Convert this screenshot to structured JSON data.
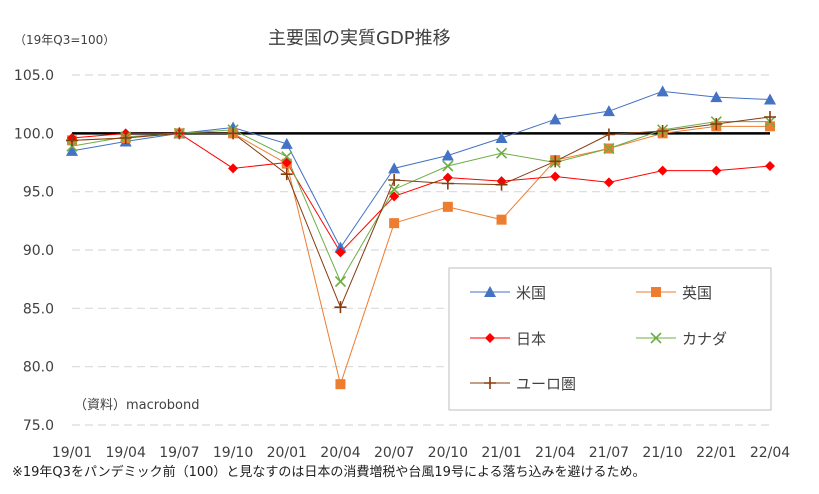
{
  "colors": {
    "米国": "#4472c4",
    "英国": "#ed7d31",
    "日本": "#ff0000",
    "カナダ": "#70ad47",
    "ユーロ圏": "#843c0c",
    "baseline": "#000000",
    "grid": "#d9d9d9"
  },
  "chart_data": {
    "type": "line",
    "title": "主要国の実質GDP推移",
    "unit_label": "（19年Q3=100）",
    "source_label": "（資料）macrobond",
    "footnote": "※19年Q3をパンデミック前（100）と見なすのは日本の消費増税や台風19号による落ち込みを避けるため。",
    "ylim": [
      75,
      105
    ],
    "yticks": [
      "75.0",
      "80.0",
      "85.0",
      "90.0",
      "95.0",
      "100.0",
      "105.0"
    ],
    "categories": [
      "19/01",
      "19/04",
      "19/07",
      "19/10",
      "20/01",
      "20/04",
      "20/07",
      "20/10",
      "21/01",
      "21/04",
      "21/07",
      "21/10",
      "22/01",
      "22/04"
    ],
    "baseline": 100,
    "grid": true,
    "legend_position": "inside-bottom-right",
    "series": [
      {
        "name": "米国",
        "marker": "triangle",
        "color_key": "米国",
        "values": [
          98.5,
          99.3,
          100.0,
          100.5,
          99.1,
          90.2,
          97.0,
          98.1,
          99.6,
          101.2,
          101.9,
          103.6,
          103.1,
          102.9
        ]
      },
      {
        "name": "英国",
        "marker": "square",
        "color_key": "英国",
        "values": [
          99.4,
          99.6,
          100.0,
          100.0,
          97.4,
          78.5,
          92.3,
          93.7,
          92.6,
          97.7,
          98.7,
          100.0,
          100.6,
          100.6
        ]
      },
      {
        "name": "日本",
        "marker": "diamond",
        "color_key": "日本",
        "values": [
          99.6,
          100.0,
          100.0,
          97.0,
          97.5,
          89.8,
          94.6,
          96.2,
          95.9,
          96.3,
          95.8,
          96.8,
          96.8,
          97.2
        ]
      },
      {
        "name": "カナダ",
        "marker": "x",
        "color_key": "カナダ",
        "values": [
          98.9,
          99.7,
          100.0,
          100.3,
          98.0,
          87.3,
          95.2,
          97.2,
          98.3,
          97.5,
          98.7,
          100.3,
          101.0,
          101.0
        ]
      },
      {
        "name": "ユーロ圏",
        "marker": "plus",
        "color_key": "ユーロ圏",
        "values": [
          99.4,
          99.6,
          100.0,
          100.0,
          96.5,
          85.1,
          96.0,
          95.7,
          95.6,
          97.6,
          99.9,
          100.2,
          100.8,
          101.4
        ]
      }
    ]
  }
}
